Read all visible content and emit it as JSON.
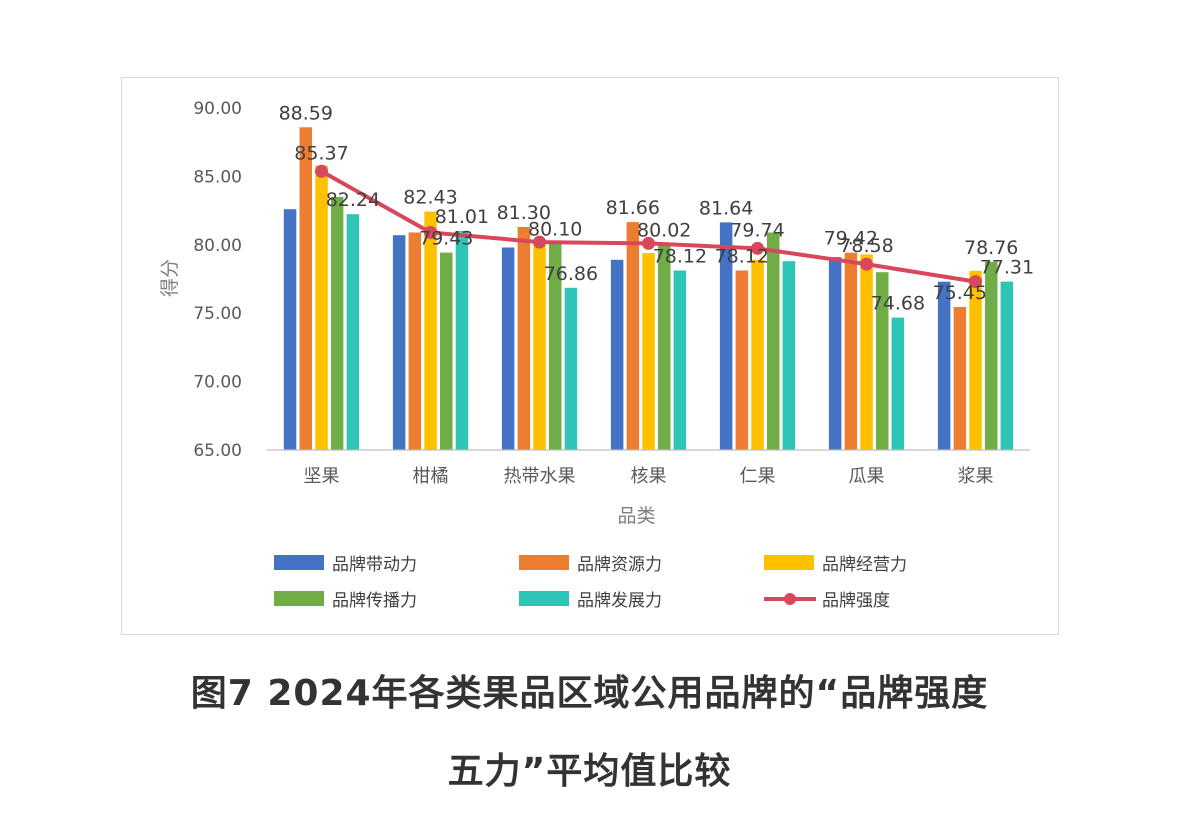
{
  "caption": {
    "line1": "图7 2024年各类果品区域公用品牌的“品牌强度",
    "line2": "五力”平均值比较"
  },
  "chart_data": {
    "type": "bar",
    "xlabel": "品类",
    "ylabel": "得分",
    "ylim": [
      65,
      90
    ],
    "yticks": [
      "65.00",
      "70.00",
      "75.00",
      "80.00",
      "85.00",
      "90.00"
    ],
    "grid": false,
    "legend_position": "bottom",
    "categories": [
      "坚果",
      "柑橘",
      "热带水果",
      "核果",
      "仁果",
      "瓜果",
      "浆果"
    ],
    "series": [
      {
        "name": "品牌带动力",
        "type": "bar",
        "color": "#4472c4",
        "values": [
          82.6,
          80.7,
          79.8,
          78.9,
          81.64,
          79.1,
          77.3
        ]
      },
      {
        "name": "品牌资源力",
        "type": "bar",
        "color": "#ed7d31",
        "values": [
          88.59,
          80.9,
          81.3,
          81.66,
          78.12,
          79.42,
          75.45
        ]
      },
      {
        "name": "品牌经营力",
        "type": "bar",
        "color": "#ffc000",
        "values": [
          85.8,
          82.43,
          80.4,
          79.4,
          78.9,
          79.3,
          78.1
        ]
      },
      {
        "name": "品牌传播力",
        "type": "bar",
        "color": "#70ad47",
        "values": [
          83.5,
          79.43,
          80.1,
          80.02,
          80.9,
          78.0,
          78.76
        ]
      },
      {
        "name": "品牌发展力",
        "type": "bar",
        "color": "#2ec4b6",
        "values": [
          82.24,
          81.01,
          76.86,
          78.12,
          78.8,
          74.68,
          77.31
        ]
      },
      {
        "name": "品牌强度",
        "type": "line",
        "color": "#d9475c",
        "values": [
          85.37,
          80.9,
          80.2,
          80.1,
          79.74,
          78.58,
          77.31
        ]
      }
    ],
    "data_labels": [
      {
        "text": "88.59",
        "category": 0,
        "series": 1
      },
      {
        "text": "85.37",
        "category": 0,
        "series": 5
      },
      {
        "text": "82.24",
        "category": 0,
        "series": 4
      },
      {
        "text": "82.43",
        "category": 1,
        "series": 2
      },
      {
        "text": "81.01",
        "category": 1,
        "series": 4
      },
      {
        "text": "79.43",
        "category": 1,
        "series": 3
      },
      {
        "text": "81.30",
        "category": 2,
        "series": 1
      },
      {
        "text": "80.10",
        "category": 2,
        "series": 3
      },
      {
        "text": "76.86",
        "category": 2,
        "series": 4
      },
      {
        "text": "81.66",
        "category": 3,
        "series": 1
      },
      {
        "text": "80.02",
        "category": 3,
        "series": 3
      },
      {
        "text": "78.12",
        "category": 3,
        "series": 4
      },
      {
        "text": "81.64",
        "category": 4,
        "series": 0
      },
      {
        "text": "78.12",
        "category": 4,
        "series": 1
      },
      {
        "text": "79.74",
        "category": 4,
        "series": 5
      },
      {
        "text": "79.42",
        "category": 5,
        "series": 1
      },
      {
        "text": "78.58",
        "category": 5,
        "series": 5
      },
      {
        "text": "74.68",
        "category": 5,
        "series": 4
      },
      {
        "text": "78.76",
        "category": 6,
        "series": 3
      },
      {
        "text": "75.45",
        "category": 6,
        "series": 1
      },
      {
        "text": "77.31",
        "category": 6,
        "series": 4
      }
    ]
  }
}
